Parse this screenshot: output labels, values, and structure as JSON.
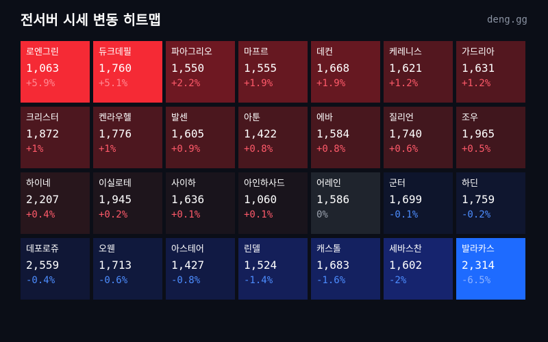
{
  "header": {
    "title": "전서버 시세 변동 히트맵",
    "brand": "deng.gg"
  },
  "colors": {
    "background": "#0b0e17",
    "positive_text": "#ff5a6a",
    "negative_text": "#4d8dff",
    "neutral_text": "#9aa1ad",
    "strong_positive": "#f52a35",
    "strong_negative": "#1e6bff"
  },
  "chart_data": {
    "type": "heatmap",
    "title": "전서버 시세 변동 히트맵",
    "metric": "change_percent",
    "cells": [
      {
        "name": "로엔그린",
        "price": "1,063",
        "change": "+5.9%",
        "value": 5.9
      },
      {
        "name": "듀크데필",
        "price": "1,760",
        "change": "+5.1%",
        "value": 5.1
      },
      {
        "name": "파아그리오",
        "price": "1,550",
        "change": "+2.2%",
        "value": 2.2
      },
      {
        "name": "마프르",
        "price": "1,555",
        "change": "+1.9%",
        "value": 1.9
      },
      {
        "name": "데컨",
        "price": "1,668",
        "change": "+1.9%",
        "value": 1.9
      },
      {
        "name": "케레니스",
        "price": "1,621",
        "change": "+1.2%",
        "value": 1.2
      },
      {
        "name": "가드리아",
        "price": "1,631",
        "change": "+1.2%",
        "value": 1.2
      },
      {
        "name": "크리스터",
        "price": "1,872",
        "change": "+1%",
        "value": 1.0
      },
      {
        "name": "켄라우헬",
        "price": "1,776",
        "change": "+1%",
        "value": 1.0
      },
      {
        "name": "발센",
        "price": "1,605",
        "change": "+0.9%",
        "value": 0.9
      },
      {
        "name": "아툰",
        "price": "1,422",
        "change": "+0.8%",
        "value": 0.8
      },
      {
        "name": "에바",
        "price": "1,584",
        "change": "+0.8%",
        "value": 0.8
      },
      {
        "name": "질리언",
        "price": "1,740",
        "change": "+0.6%",
        "value": 0.6
      },
      {
        "name": "조우",
        "price": "1,965",
        "change": "+0.5%",
        "value": 0.5
      },
      {
        "name": "하이네",
        "price": "2,207",
        "change": "+0.4%",
        "value": 0.4
      },
      {
        "name": "이실로테",
        "price": "1,945",
        "change": "+0.2%",
        "value": 0.2
      },
      {
        "name": "사이하",
        "price": "1,636",
        "change": "+0.1%",
        "value": 0.1
      },
      {
        "name": "아인하사드",
        "price": "1,060",
        "change": "+0.1%",
        "value": 0.1
      },
      {
        "name": "어레인",
        "price": "1,586",
        "change": "0%",
        "value": 0.0
      },
      {
        "name": "군터",
        "price": "1,699",
        "change": "-0.1%",
        "value": -0.1
      },
      {
        "name": "하딘",
        "price": "1,759",
        "change": "-0.2%",
        "value": -0.2
      },
      {
        "name": "데포로쥬",
        "price": "2,559",
        "change": "-0.4%",
        "value": -0.4
      },
      {
        "name": "오웬",
        "price": "1,713",
        "change": "-0.6%",
        "value": -0.6
      },
      {
        "name": "아스테어",
        "price": "1,427",
        "change": "-0.8%",
        "value": -0.8
      },
      {
        "name": "린델",
        "price": "1,524",
        "change": "-1.4%",
        "value": -1.4
      },
      {
        "name": "캐스톨",
        "price": "1,683",
        "change": "-1.6%",
        "value": -1.6
      },
      {
        "name": "세바스찬",
        "price": "1,602",
        "change": "-2%",
        "value": -2.0
      },
      {
        "name": "발라카스",
        "price": "2,314",
        "change": "-6.5%",
        "value": -6.5
      }
    ]
  }
}
